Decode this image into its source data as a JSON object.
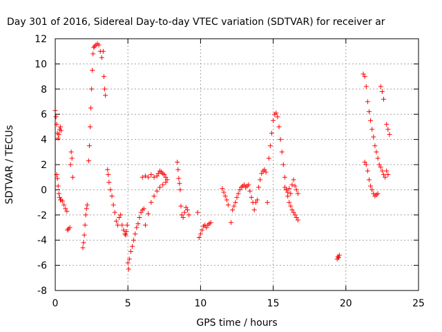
{
  "chart_data": {
    "type": "scatter",
    "title": "Day 301 of 2016, Sidereal Day-to-day VTEC variation (SDTVAR) for receiver ar",
    "xlabel": "GPS time / hours",
    "ylabel": "SDTVAR / TECUs",
    "xlim": [
      0,
      25
    ],
    "ylim": [
      -8,
      12
    ],
    "xticks": [
      "0",
      "5",
      "10",
      "15",
      "20",
      "25"
    ],
    "yticks": [
      "-8",
      "-6",
      "-4",
      "-2",
      "0",
      "2",
      "4",
      "6",
      "8",
      "10",
      "12"
    ],
    "grid": true,
    "legend": "none",
    "marker": "+",
    "color": "#ff0000",
    "series": [
      {
        "x": [
          0.0,
          0.05,
          0.1,
          0.15,
          0.2,
          0.25,
          0.3,
          0.35,
          0.4,
          0.1,
          0.15,
          0.2,
          0.25,
          0.3,
          0.35,
          0.4,
          0.5,
          0.6,
          0.7,
          0.8,
          0.85,
          0.9,
          1.0,
          1.05,
          1.1,
          1.15,
          1.2
        ],
        "y": [
          6.3,
          5.8,
          5.2,
          4.5,
          4.1,
          4.4,
          4.8,
          5.0,
          4.7,
          1.2,
          0.9,
          0.3,
          -0.3,
          -0.6,
          -0.8,
          -0.8,
          -0.9,
          -1.2,
          -1.5,
          -1.7,
          -3.2,
          -3.1,
          -3.0,
          2.0,
          3.0,
          2.5,
          1.0
        ]
      },
      {
        "x": [
          1.9,
          1.95,
          2.0,
          2.05,
          2.1,
          2.15,
          2.2,
          2.3,
          2.35,
          2.4,
          2.45,
          2.5,
          2.55,
          2.6,
          2.65,
          2.7,
          2.8,
          2.9,
          3.0,
          3.1,
          3.2,
          3.3,
          3.35,
          3.4,
          3.45
        ],
        "y": [
          -4.6,
          -4.2,
          -3.6,
          -2.8,
          -2.0,
          -1.5,
          -1.2,
          2.3,
          3.5,
          5.0,
          6.5,
          8.0,
          9.5,
          10.8,
          11.3,
          11.4,
          11.5,
          11.6,
          11.5,
          11.0,
          10.5,
          11.0,
          9.0,
          8.0,
          7.5
        ]
      },
      {
        "x": [
          3.6,
          3.65,
          3.7,
          3.8,
          3.9,
          4.0,
          4.1,
          4.2,
          4.3,
          4.4,
          4.5,
          4.6,
          4.7,
          4.8,
          4.85,
          4.9,
          4.95,
          5.0,
          5.05,
          5.1,
          5.2,
          5.3,
          5.4,
          5.5,
          5.6,
          5.7,
          5.8,
          5.9,
          6.0,
          6.1
        ],
        "y": [
          1.6,
          1.2,
          0.6,
          0.0,
          -0.5,
          -1.2,
          -1.8,
          -2.5,
          -2.8,
          -2.2,
          -2.0,
          -2.8,
          -3.2,
          -3.5,
          -3.6,
          -3.3,
          -2.8,
          -5.8,
          -6.3,
          -5.5,
          -4.9,
          -4.5,
          -4.0,
          -3.5,
          -3.0,
          -2.7,
          -2.2,
          -1.8,
          -1.6,
          -1.5
        ]
      },
      {
        "x": [
          6.0,
          6.2,
          6.4,
          6.6,
          6.8,
          7.0,
          7.1,
          7.2,
          7.3,
          7.4,
          7.5,
          7.6,
          7.7,
          6.2,
          6.4,
          6.6,
          6.8,
          7.0,
          7.2,
          7.4,
          7.6
        ],
        "y": [
          1.0,
          1.1,
          1.0,
          1.2,
          1.0,
          1.1,
          1.3,
          1.5,
          1.4,
          1.3,
          1.2,
          1.0,
          0.8,
          -2.8,
          -1.9,
          -1.0,
          -0.5,
          -0.1,
          0.2,
          0.4,
          0.6
        ]
      },
      {
        "x": [
          8.4,
          8.45,
          8.5,
          8.55,
          8.6,
          8.65,
          8.7,
          8.8,
          8.9,
          9.0,
          9.1,
          9.2
        ],
        "y": [
          2.2,
          1.6,
          0.9,
          0.5,
          0.0,
          -1.3,
          -2.0,
          -2.2,
          -1.8,
          -1.4,
          -1.6,
          -2.0
        ]
      },
      {
        "x": [
          9.8,
          9.9,
          10.0,
          10.1,
          10.2,
          10.3,
          10.4,
          10.5,
          10.6,
          10.7
        ],
        "y": [
          -1.8,
          -3.8,
          -3.5,
          -3.2,
          -2.9,
          -2.8,
          -3.0,
          -2.8,
          -2.7,
          -2.6
        ]
      },
      {
        "x": [
          11.5,
          11.6,
          11.7,
          11.8,
          11.9,
          12.1,
          12.2,
          12.3,
          12.4,
          12.5,
          12.6,
          12.7,
          12.8,
          12.9,
          13.0,
          13.1,
          13.2,
          13.3,
          13.4,
          13.5,
          13.6,
          13.7,
          13.8,
          13.9,
          14.0,
          14.1,
          14.2,
          14.3,
          14.4,
          14.5
        ],
        "y": [
          0.1,
          -0.2,
          -0.5,
          -0.8,
          -1.2,
          -2.6,
          -1.6,
          -1.3,
          -1.0,
          -0.6,
          -0.3,
          0.0,
          0.2,
          0.3,
          0.4,
          0.2,
          0.3,
          0.4,
          -0.1,
          -0.6,
          -1.0,
          -1.6,
          -1.0,
          -0.8,
          0.2,
          0.8,
          1.3,
          1.5,
          1.6,
          1.4
        ]
      },
      {
        "x": [
          14.6,
          14.7,
          14.8,
          14.9,
          15.0,
          15.1,
          15.2,
          15.3,
          15.4,
          15.5,
          15.6,
          15.7,
          15.8,
          15.9,
          16.0,
          16.1,
          16.2,
          16.3,
          16.4,
          16.5,
          16.6,
          16.7,
          15.8,
          15.9,
          16.0,
          16.1,
          16.2,
          16.3,
          16.4,
          16.5,
          16.6,
          16.7
        ],
        "y": [
          -1.0,
          2.5,
          3.5,
          4.5,
          5.5,
          6.0,
          6.1,
          5.8,
          5.0,
          4.0,
          3.0,
          2.0,
          1.0,
          0.0,
          -0.5,
          -1.0,
          -1.3,
          -1.6,
          -1.8,
          -2.0,
          -2.2,
          -2.4,
          0.2,
          0.0,
          -0.2,
          0.1,
          -0.3,
          0.4,
          0.8,
          0.3,
          0.0,
          -0.3
        ]
      },
      {
        "x": [
          19.4,
          19.45,
          19.5,
          19.55
        ],
        "y": [
          -5.5,
          -5.3,
          -5.4,
          -5.2
        ]
      },
      {
        "x": [
          21.2,
          21.3,
          21.4,
          21.5,
          21.6,
          21.7,
          21.8,
          21.9,
          22.0,
          22.1,
          22.2,
          22.3,
          22.4,
          22.5,
          22.6,
          22.7,
          22.8,
          22.9,
          21.3,
          21.4,
          21.5,
          21.6,
          21.7,
          21.8,
          21.9,
          22.0,
          22.1,
          22.2,
          22.4,
          22.5,
          22.6,
          22.8,
          22.9,
          23.0
        ],
        "y": [
          9.2,
          9.0,
          8.2,
          7.0,
          6.2,
          5.5,
          4.8,
          4.2,
          3.5,
          3.0,
          2.5,
          2.0,
          1.8,
          1.5,
          1.2,
          1.0,
          1.5,
          1.2,
          2.2,
          2.0,
          1.5,
          0.8,
          0.3,
          0.0,
          -0.3,
          -0.5,
          -0.4,
          -0.3,
          8.2,
          7.8,
          7.2,
          5.2,
          4.8,
          4.4
        ]
      }
    ]
  }
}
